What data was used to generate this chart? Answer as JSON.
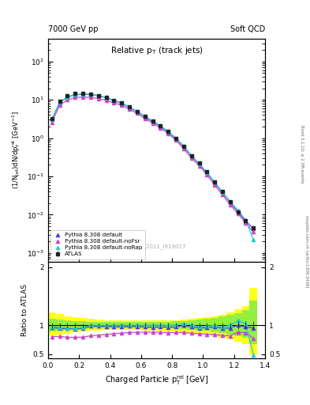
{
  "top_left_label": "7000 GeV pp",
  "top_right_label": "Soft QCD",
  "watermark": "ATLAS_2011_I919017",
  "right_label1": "Rivet 3.1.10; ≥ 2.3M events",
  "right_label2": "mcplots.cern.ch [arXiv:1306.3436]",
  "xlabel": "Charged Particle $\\mathregular{p_T^{rel}}$ [GeV]",
  "ylabel_top": "(1/N$\\mathregular{_{jet}}$)dN/dp$\\mathregular{_T^{rel}}$ [GeV$\\mathregular{^{-1}}$]",
  "ylabel_bottom": "Ratio to ATLAS",
  "title": "Relative $\\mathregular{p_T}$ (track jets)",
  "x_data": [
    0.025,
    0.075,
    0.125,
    0.175,
    0.225,
    0.275,
    0.325,
    0.375,
    0.425,
    0.475,
    0.525,
    0.575,
    0.625,
    0.675,
    0.725,
    0.775,
    0.825,
    0.875,
    0.925,
    0.975,
    1.025,
    1.075,
    1.125,
    1.175,
    1.225,
    1.275,
    1.325
  ],
  "atlas_y": [
    3.2,
    9.0,
    12.5,
    14.5,
    14.8,
    14.0,
    13.0,
    11.5,
    9.8,
    8.2,
    6.5,
    5.0,
    3.7,
    2.8,
    2.1,
    1.5,
    1.0,
    0.6,
    0.35,
    0.22,
    0.13,
    0.07,
    0.04,
    0.022,
    0.012,
    0.007,
    0.0045
  ],
  "atlas_yerr": [
    0.15,
    0.35,
    0.5,
    0.55,
    0.55,
    0.5,
    0.45,
    0.4,
    0.35,
    0.3,
    0.25,
    0.18,
    0.15,
    0.1,
    0.08,
    0.06,
    0.04,
    0.025,
    0.015,
    0.009,
    0.006,
    0.003,
    0.002,
    0.001,
    0.0008,
    0.0005,
    0.0003
  ],
  "pythia_default_y": [
    3.1,
    8.5,
    11.8,
    13.5,
    14.0,
    13.8,
    12.8,
    11.3,
    9.6,
    8.0,
    6.4,
    4.9,
    3.6,
    2.7,
    2.05,
    1.45,
    0.97,
    0.6,
    0.34,
    0.21,
    0.125,
    0.068,
    0.038,
    0.021,
    0.012,
    0.0068,
    0.0043
  ],
  "pythia_noFsr_y": [
    2.58,
    7.29,
    9.94,
    11.5,
    11.8,
    11.5,
    10.8,
    9.7,
    8.4,
    7.1,
    5.7,
    4.4,
    3.26,
    2.47,
    1.85,
    1.31,
    0.875,
    0.526,
    0.302,
    0.188,
    0.11,
    0.059,
    0.033,
    0.018,
    0.0106,
    0.0061,
    0.0035
  ],
  "pythia_noRap_y": [
    3.14,
    8.68,
    11.9,
    13.8,
    14.2,
    14.0,
    13.0,
    11.5,
    9.8,
    8.2,
    6.5,
    5.0,
    3.7,
    2.8,
    2.1,
    1.5,
    1.0,
    0.62,
    0.351,
    0.215,
    0.128,
    0.07,
    0.039,
    0.022,
    0.013,
    0.0072,
    0.0022
  ],
  "color_atlas": "#222222",
  "color_default": "#4444dd",
  "color_noFsr": "#cc44cc",
  "color_noRap": "#22cccc",
  "band_yellow_xlo": [
    0.0,
    0.05,
    0.1,
    0.15,
    0.2,
    0.25,
    0.3,
    0.35,
    0.4,
    0.45,
    0.5,
    0.55,
    0.6,
    0.65,
    0.7,
    0.75,
    0.8,
    0.85,
    0.9,
    0.95,
    1.0,
    1.05,
    1.1,
    1.15,
    1.2,
    1.25,
    1.3
  ],
  "band_yellow_xhi": [
    0.05,
    0.1,
    0.15,
    0.2,
    0.25,
    0.3,
    0.35,
    0.4,
    0.45,
    0.5,
    0.55,
    0.6,
    0.65,
    0.7,
    0.75,
    0.8,
    0.85,
    0.9,
    0.95,
    1.0,
    1.05,
    1.1,
    1.15,
    1.2,
    1.25,
    1.3,
    1.35
  ],
  "band_yellow_lo": [
    0.82,
    0.84,
    0.86,
    0.88,
    0.895,
    0.905,
    0.912,
    0.917,
    0.92,
    0.922,
    0.92,
    0.918,
    0.914,
    0.91,
    0.905,
    0.898,
    0.89,
    0.878,
    0.865,
    0.85,
    0.835,
    0.815,
    0.79,
    0.76,
    0.72,
    0.68,
    0.5
  ],
  "band_yellow_hi": [
    1.22,
    1.19,
    1.16,
    1.14,
    1.12,
    1.11,
    1.1,
    1.09,
    1.085,
    1.08,
    1.08,
    1.08,
    1.08,
    1.08,
    1.08,
    1.085,
    1.09,
    1.098,
    1.108,
    1.12,
    1.135,
    1.155,
    1.18,
    1.22,
    1.27,
    1.33,
    1.65
  ],
  "band_green_lo": [
    0.9,
    0.912,
    0.922,
    0.93,
    0.938,
    0.944,
    0.948,
    0.951,
    0.953,
    0.954,
    0.954,
    0.953,
    0.951,
    0.949,
    0.947,
    0.944,
    0.939,
    0.933,
    0.925,
    0.915,
    0.903,
    0.888,
    0.869,
    0.845,
    0.815,
    0.78,
    0.68
  ],
  "band_green_hi": [
    1.115,
    1.1,
    1.088,
    1.078,
    1.07,
    1.064,
    1.059,
    1.056,
    1.054,
    1.052,
    1.052,
    1.053,
    1.055,
    1.057,
    1.06,
    1.064,
    1.069,
    1.077,
    1.086,
    1.098,
    1.112,
    1.13,
    1.152,
    1.18,
    1.215,
    1.26,
    1.42
  ],
  "ratio_default": [
    0.969,
    0.944,
    0.944,
    0.931,
    0.946,
    0.986,
    0.985,
    0.983,
    0.98,
    0.976,
    0.985,
    0.98,
    0.973,
    0.964,
    0.976,
    0.967,
    0.97,
    1.0,
    0.971,
    0.955,
    0.962,
    0.971,
    0.95,
    0.955,
    1.0,
    0.971,
    0.956
  ],
  "ratio_noFsr": [
    0.806,
    0.81,
    0.795,
    0.793,
    0.797,
    0.821,
    0.831,
    0.843,
    0.857,
    0.866,
    0.877,
    0.88,
    0.881,
    0.882,
    0.881,
    0.873,
    0.875,
    0.877,
    0.863,
    0.855,
    0.846,
    0.843,
    0.825,
    0.818,
    0.883,
    0.871,
    0.778
  ],
  "ratio_noRap": [
    0.981,
    0.964,
    0.952,
    0.952,
    0.959,
    1.0,
    1.0,
    1.0,
    1.0,
    1.0,
    1.0,
    1.0,
    1.0,
    1.0,
    1.0,
    1.0,
    1.0,
    1.033,
    1.003,
    0.977,
    0.985,
    1.0,
    0.975,
    1.0,
    1.083,
    1.029,
    0.489
  ],
  "ratio_err_lo": [
    0.048,
    0.039,
    0.04,
    0.038,
    0.037,
    0.036,
    0.035,
    0.035,
    0.036,
    0.037,
    0.038,
    0.036,
    0.041,
    0.036,
    0.038,
    0.04,
    0.04,
    0.042,
    0.043,
    0.041,
    0.046,
    0.043,
    0.05,
    0.046,
    0.067,
    0.071,
    0.067
  ],
  "ratio_err_hi": [
    0.048,
    0.039,
    0.04,
    0.038,
    0.037,
    0.036,
    0.035,
    0.035,
    0.036,
    0.037,
    0.038,
    0.036,
    0.041,
    0.036,
    0.038,
    0.04,
    0.04,
    0.042,
    0.043,
    0.041,
    0.046,
    0.043,
    0.05,
    0.046,
    0.067,
    0.071,
    0.067
  ]
}
